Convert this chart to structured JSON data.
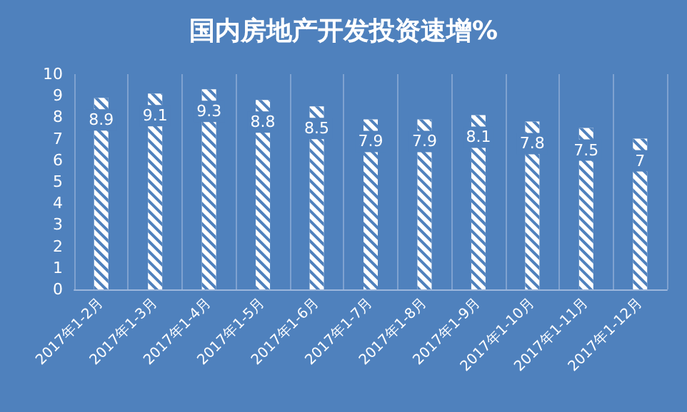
{
  "chart_data": {
    "type": "bar",
    "title": "国内房地产开发投资速增%",
    "categories": [
      "2017年1-2月",
      "2017年1-3月",
      "2017年1-4月",
      "2017年1-5月",
      "2017年1-6月",
      "2017年1-7月",
      "2017年1-8月",
      "2017年1-9月",
      "2017年1-10月",
      "2017年1-11月",
      "2017年1-12月"
    ],
    "values": [
      8.9,
      9.1,
      9.3,
      8.8,
      8.5,
      7.9,
      7.9,
      8.1,
      7.8,
      7.5,
      7
    ],
    "color": "#ffffff",
    "ylim": [
      0,
      10
    ],
    "yticks": [
      0,
      1,
      2,
      3,
      4,
      5,
      6,
      7,
      8,
      9,
      10
    ],
    "grid": "x",
    "data_labels": true
  }
}
